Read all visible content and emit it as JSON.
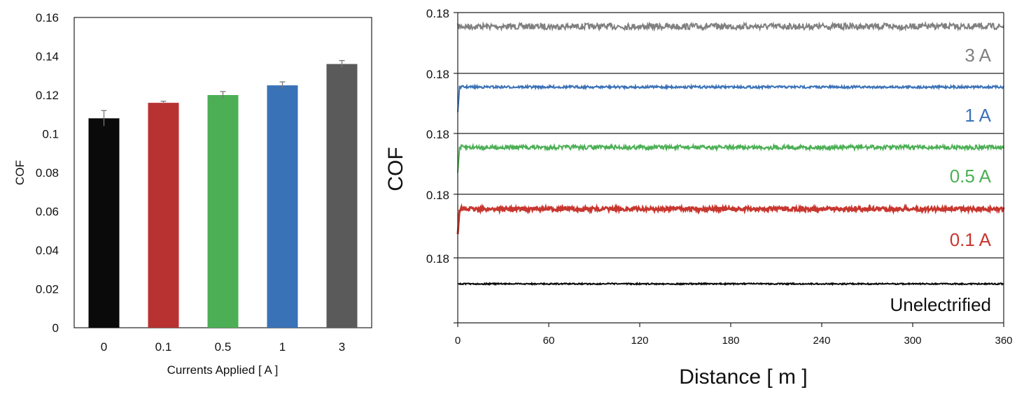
{
  "chart_data": [
    {
      "type": "bar",
      "categories": [
        "0",
        "0.1",
        "0.5",
        "1",
        "3"
      ],
      "values": [
        0.108,
        0.116,
        0.12,
        0.125,
        0.136
      ],
      "errors": [
        0.004,
        0.0008,
        0.0018,
        0.0018,
        0.0018
      ],
      "colors": [
        "#0a0a0a",
        "#b83232",
        "#4caf55",
        "#3a72b8",
        "#5a5a5a"
      ],
      "xlabel": "Currents Applied [ A ]",
      "ylabel": "COF",
      "ylim": [
        0,
        0.16
      ],
      "yticks": [
        "0",
        "0.02",
        "0.04",
        "0.06",
        "0.08",
        "0.1",
        "0.12",
        "0.14",
        "0.16"
      ],
      "grid": false
    },
    {
      "type": "line",
      "xlabel": "Distance [ m ]",
      "ylabel": "COF",
      "xlim": [
        0,
        360
      ],
      "xticks": [
        "0",
        "60",
        "120",
        "180",
        "240",
        "300",
        "360"
      ],
      "ytick_labels": [
        "0.18",
        "0.18",
        "0.18",
        "0.18",
        "0.18"
      ],
      "panels": [
        {
          "label": "3 A",
          "color": "#808080",
          "level": 0.68,
          "noise": 0.05
        },
        {
          "label": "1 A",
          "color": "#3a72b8",
          "level": 0.68,
          "noise": 0.02
        },
        {
          "label": "0.5 A",
          "color": "#4caf55",
          "level": 0.68,
          "noise": 0.035
        },
        {
          "label": "0.1 A",
          "color": "#c8372f",
          "level": 0.68,
          "noise": 0.03
        },
        {
          "label": "Unelectrified",
          "color": "#0a0a0a",
          "level": 0.6,
          "noise": 0.01
        }
      ]
    }
  ]
}
